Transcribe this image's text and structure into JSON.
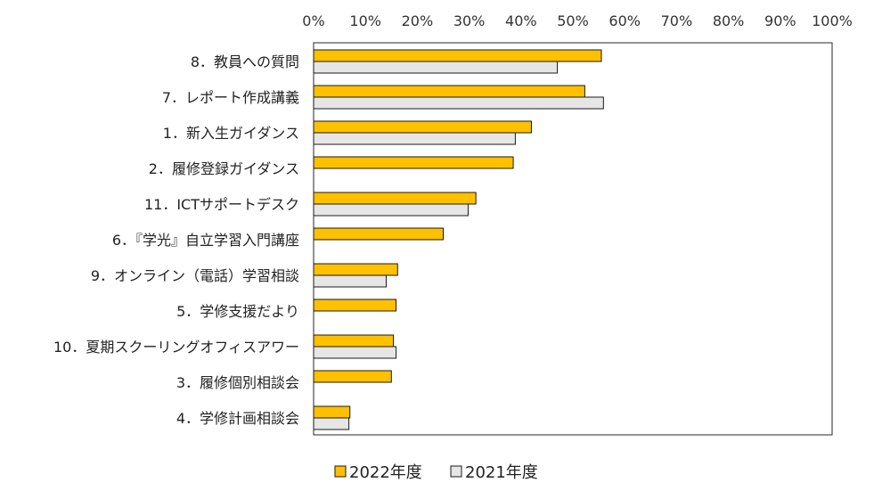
{
  "chart_data": {
    "type": "bar",
    "orientation": "horizontal",
    "title": "",
    "xlabel": "",
    "ylabel": "",
    "xlim": [
      0,
      100
    ],
    "x_ticks": [
      "0%",
      "10%",
      "20%",
      "30%",
      "40%",
      "50%",
      "60%",
      "70%",
      "80%",
      "90%",
      "100%"
    ],
    "x_axis_position": "top",
    "grid": false,
    "legend_position": "bottom",
    "categories": [
      "8．教員への質問",
      "7．レポート作成講義",
      "1．新入生ガイダンス",
      "2．履修登録ガイダンス",
      "11．ICTサポートデスク",
      "6．『学光』自立学習入門講座",
      "9．オンライン（電話）学習相談",
      "5．学修支援だより",
      "10．夏期スクーリングオフィスアワー",
      "3．履修個別相談会",
      "4．学修計画相談会"
    ],
    "series": [
      {
        "name": "2022年度",
        "color": "#FFC000",
        "values": [
          55.5,
          52.3,
          42.0,
          38.5,
          31.3,
          25.0,
          16.2,
          15.9,
          15.4,
          15.0,
          7.0
        ]
      },
      {
        "name": "2021年度",
        "color": "#E7E6E6",
        "values": [
          47.0,
          55.9,
          38.9,
          null,
          29.8,
          null,
          14.0,
          null,
          15.9,
          null,
          6.8
        ]
      }
    ]
  }
}
